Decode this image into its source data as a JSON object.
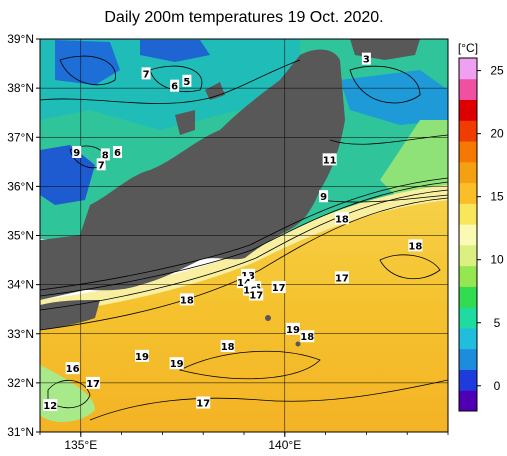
{
  "title": "Daily 200m temperatures 19 Oct. 2020.",
  "map": {
    "lat_labels": [
      "39°N",
      "38°N",
      "37°N",
      "36°N",
      "35°N",
      "34°N",
      "33°N",
      "32°N",
      "31°N"
    ],
    "lon_labels": [
      "135°E",
      "140°E"
    ],
    "lon_range": [
      134,
      144
    ],
    "lat_range": [
      31,
      39
    ]
  },
  "colorbar": {
    "unit": "[°C]",
    "ticks": [
      "25",
      "20",
      "15",
      "10",
      "5",
      "0"
    ],
    "range": [
      -2,
      26
    ],
    "colors": [
      "#5000b4",
      "#1e3cdc",
      "#1e8cdc",
      "#1ebedc",
      "#1edca0",
      "#32dc50",
      "#96e650",
      "#dcf082",
      "#fafab4",
      "#fae65a",
      "#fabe28",
      "#f5a010",
      "#f57800",
      "#f03c00",
      "#dc0000",
      "#f050a0",
      "#f0a0f0"
    ]
  },
  "contour_labels": [
    {
      "text": "3",
      "lon": 142.0,
      "lat": 38.6
    },
    {
      "text": "7",
      "lon": 136.6,
      "lat": 38.3
    },
    {
      "text": "6",
      "lon": 137.3,
      "lat": 38.05
    },
    {
      "text": "5",
      "lon": 137.6,
      "lat": 38.15
    },
    {
      "text": "9",
      "lon": 134.9,
      "lat": 36.7
    },
    {
      "text": "8",
      "lon": 135.6,
      "lat": 36.65
    },
    {
      "text": "7",
      "lon": 135.5,
      "lat": 36.45
    },
    {
      "text": "6",
      "lon": 135.9,
      "lat": 36.7
    },
    {
      "text": "11",
      "lon": 141.1,
      "lat": 36.55
    },
    {
      "text": "9",
      "lon": 140.95,
      "lat": 35.8
    },
    {
      "text": "18",
      "lon": 141.4,
      "lat": 35.35
    },
    {
      "text": "18",
      "lon": 143.2,
      "lat": 34.8
    },
    {
      "text": "17",
      "lon": 141.4,
      "lat": 34.15
    },
    {
      "text": "13",
      "lon": 139.1,
      "lat": 34.2
    },
    {
      "text": "14",
      "lon": 139.0,
      "lat": 34.05
    },
    {
      "text": "15",
      "lon": 139.25,
      "lat": 33.95
    },
    {
      "text": "16",
      "lon": 139.15,
      "lat": 33.9
    },
    {
      "text": "17",
      "lon": 139.3,
      "lat": 33.8
    },
    {
      "text": "17",
      "lon": 139.85,
      "lat": 33.95
    },
    {
      "text": "18",
      "lon": 137.6,
      "lat": 33.7
    },
    {
      "text": "19",
      "lon": 140.2,
      "lat": 33.1
    },
    {
      "text": "18",
      "lon": 140.55,
      "lat": 32.95
    },
    {
      "text": "18",
      "lon": 138.6,
      "lat": 32.75
    },
    {
      "text": "19",
      "lon": 136.5,
      "lat": 32.55
    },
    {
      "text": "19",
      "lon": 137.35,
      "lat": 32.4
    },
    {
      "text": "16",
      "lon": 134.8,
      "lat": 32.3
    },
    {
      "text": "17",
      "lon": 135.3,
      "lat": 32.0
    },
    {
      "text": "12",
      "lon": 134.25,
      "lat": 31.55
    },
    {
      "text": "17",
      "lon": 138.0,
      "lat": 31.6
    }
  ]
}
